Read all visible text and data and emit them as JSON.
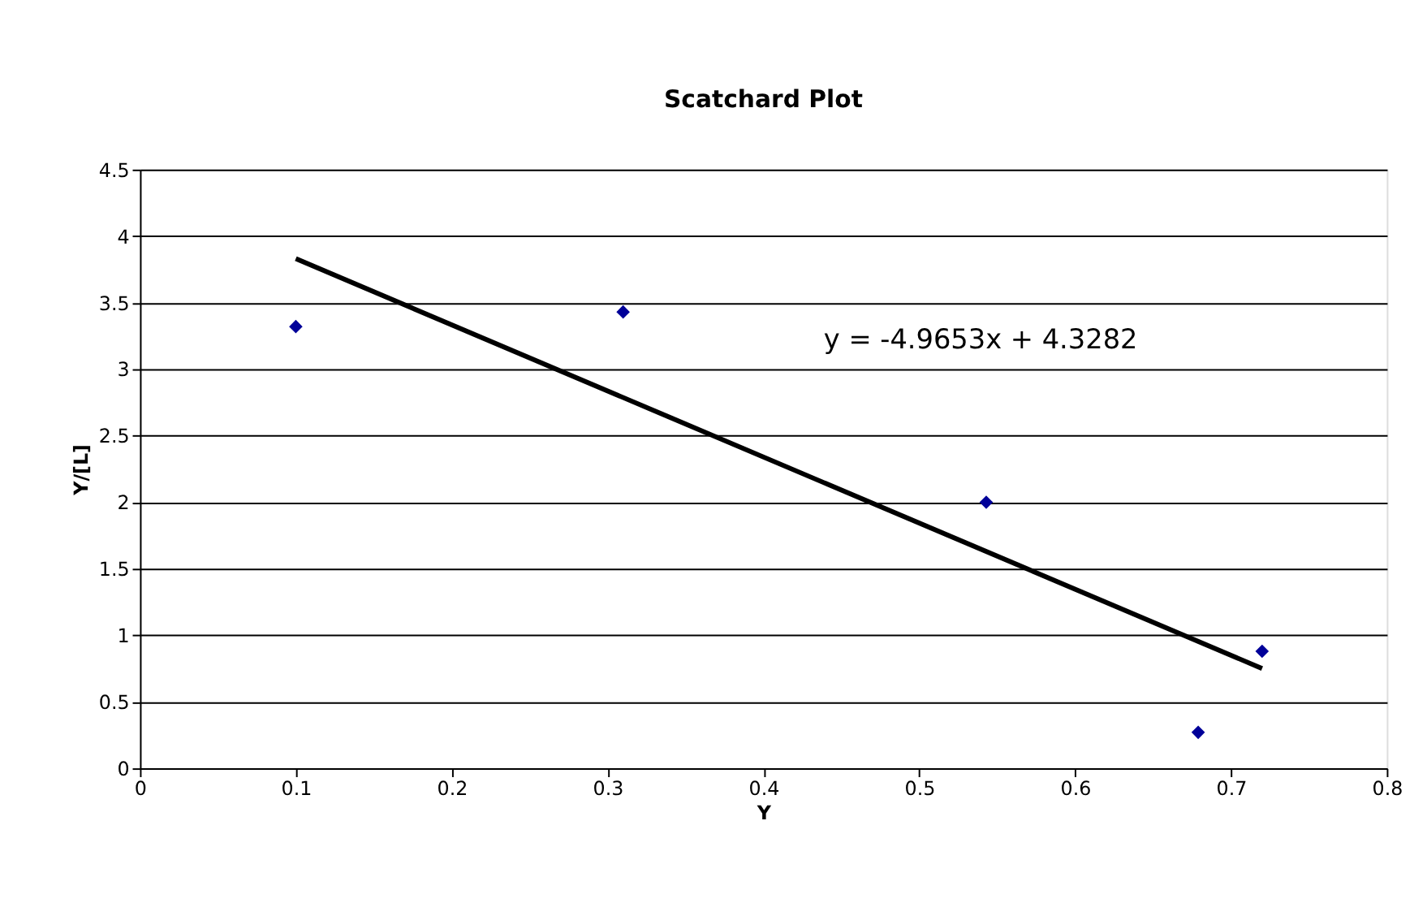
{
  "chart_data": {
    "type": "scatter",
    "title": "Scatchard Plot",
    "xlabel": "Y",
    "ylabel": "Y/[L]",
    "xlim": [
      0,
      0.8
    ],
    "xticks": [
      0,
      0.1,
      0.2,
      0.3,
      0.4,
      0.5,
      0.6,
      0.7,
      0.8
    ],
    "ylim": [
      0,
      4.5
    ],
    "yticks": [
      0,
      0.5,
      1,
      1.5,
      2,
      2.5,
      3,
      3.5,
      4,
      4.5
    ],
    "grid": "y",
    "marker": "diamond",
    "annotations": [
      "y = -4.9653x + 4.3282"
    ],
    "series": [
      {
        "color": "#000099",
        "x": [
          0.1,
          0.31,
          0.543,
          0.679,
          0.72
        ],
        "values": [
          3.32,
          3.43,
          2.0,
          0.27,
          0.88
        ]
      },
      {
        "type": "line",
        "color": "#000000",
        "marker": "none",
        "x": [
          0.1,
          0.72
        ],
        "values": [
          3.83,
          0.75
        ]
      }
    ]
  }
}
